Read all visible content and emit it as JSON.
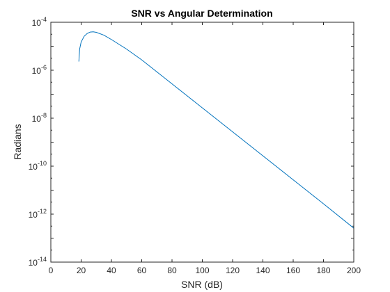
{
  "chart_data": {
    "type": "line",
    "title": "SNR vs Angular Determination",
    "xlabel": "SNR (dB)",
    "ylabel": "Radians",
    "xlim": [
      0,
      200
    ],
    "ylim": [
      1e-14,
      0.0001
    ],
    "yscale": "log",
    "grid": false,
    "box": true,
    "x_ticks": [
      0,
      20,
      40,
      60,
      80,
      100,
      120,
      140,
      160,
      180,
      200
    ],
    "x_tick_labels": [
      "0",
      "20",
      "40",
      "60",
      "80",
      "100",
      "120",
      "140",
      "160",
      "180",
      "200"
    ],
    "y_ticks": [
      {
        "value": 1e-14,
        "base": "10",
        "exp": "-14"
      },
      {
        "value": 1e-12,
        "base": "10",
        "exp": "-12"
      },
      {
        "value": 1e-10,
        "base": "10",
        "exp": "-10"
      },
      {
        "value": 1e-08,
        "base": "10",
        "exp": "-8"
      },
      {
        "value": 1e-06,
        "base": "10",
        "exp": "-6"
      },
      {
        "value": 0.0001,
        "base": "10",
        "exp": "-4"
      }
    ],
    "series": [
      {
        "color": "#0072BD",
        "x": [
          18.5,
          19,
          20,
          22,
          24,
          26,
          28,
          30,
          35,
          40,
          50,
          60,
          80,
          100,
          120,
          140,
          160,
          180,
          200
        ],
        "y": [
          2.3e-06,
          7.5e-06,
          1.5e-05,
          2.6e-05,
          3.4e-05,
          3.9e-05,
          4e-05,
          3.8e-05,
          2.9e-05,
          1.9e-05,
          7.6e-06,
          2.7e-06,
          2.7e-07,
          2.7e-08,
          2.7e-09,
          2.7e-10,
          2.7e-11,
          2.7e-12,
          2.6e-13
        ]
      }
    ]
  }
}
